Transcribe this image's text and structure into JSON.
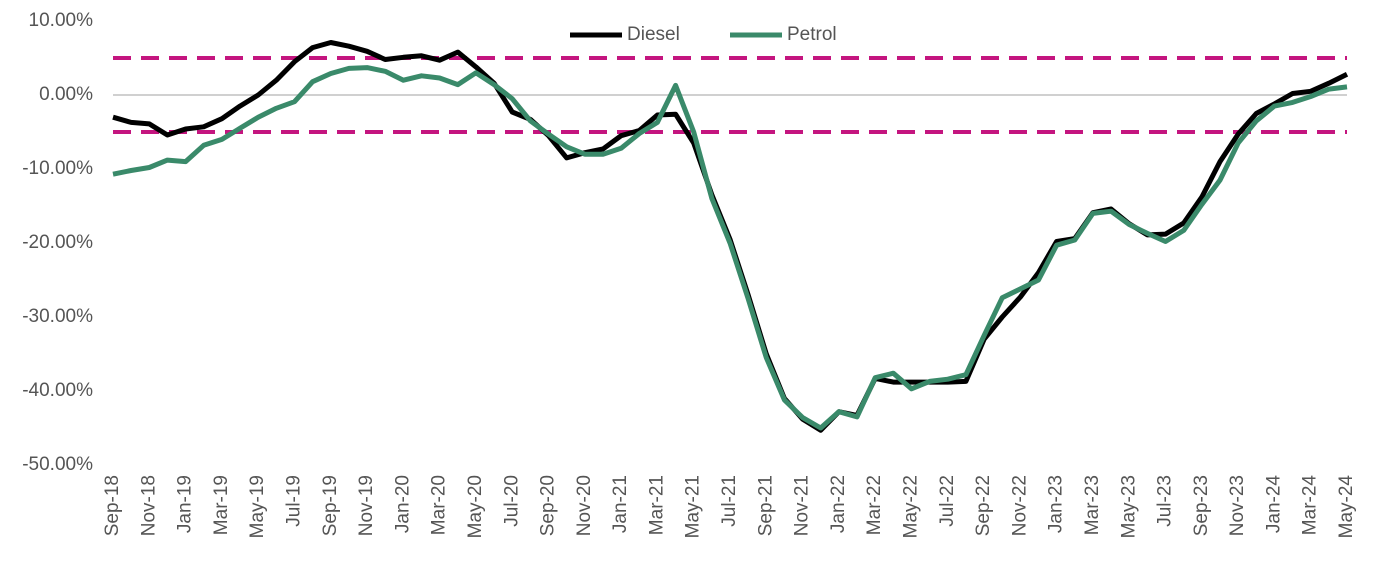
{
  "chart_data": {
    "type": "line",
    "categories": [
      "Sep-18",
      null,
      "Nov-18",
      null,
      "Jan-19",
      null,
      "Mar-19",
      null,
      "May-19",
      null,
      "Jul-19",
      null,
      "Sep-19",
      null,
      "Nov-19",
      null,
      "Jan-20",
      null,
      "Mar-20",
      null,
      "May-20",
      null,
      "Jul-20",
      null,
      "Sep-20",
      null,
      "Nov-20",
      null,
      "Jan-21",
      null,
      "Mar-21",
      null,
      "May-21",
      null,
      "Jul-21",
      null,
      "Sep-21",
      null,
      "Nov-21",
      null,
      "Jan-22",
      null,
      "Mar-22",
      null,
      "May-22",
      null,
      "Jul-22",
      null,
      "Sep-22",
      null,
      "Nov-22",
      null,
      "Jan-23",
      null,
      "Mar-23",
      null,
      "May-23",
      null,
      "Jul-23",
      null,
      "Sep-23",
      null,
      "Nov-23",
      null,
      "Jan-24",
      null,
      "Mar-24",
      null,
      "May-24"
    ],
    "series": [
      {
        "name": "Diesel",
        "color": "#000000",
        "values": [
          -3.0,
          -3.7,
          -3.9,
          -5.4,
          -4.6,
          -4.3,
          -3.2,
          -1.5,
          0,
          2,
          4.5,
          6.4,
          7.1,
          6.6,
          5.9,
          4.8,
          5.1,
          5.3,
          4.7,
          5.8,
          3.8,
          1.6,
          -2.3,
          -3.3,
          -5.5,
          -8.5,
          -7.8,
          -7.3,
          -5.5,
          -4.8,
          -2.7,
          -2.6,
          -6.5,
          -13.5,
          -19.5,
          -27,
          -35,
          -41,
          -43.8,
          -45.3,
          -42.8,
          -43.3,
          -38.3,
          -38.8,
          -38.8,
          -38.8,
          -38.8,
          -38.7,
          -33,
          -30,
          -27.3,
          -24,
          -19.8,
          -19.4,
          -15.9,
          -15.4,
          -17.4,
          -18.9,
          -18.8,
          -17.3,
          -13.8,
          -9,
          -5.3,
          -2.5,
          -1.2,
          0.2,
          0.5,
          1.6,
          2.8
        ]
      },
      {
        "name": "Petrol",
        "color": "#3a8a6a",
        "values": [
          -10.7,
          -10.2,
          -9.8,
          -8.8,
          -9.0,
          -6.8,
          -6.0,
          -4.5,
          -3.0,
          -1.8,
          -0.9,
          1.8,
          2.9,
          3.6,
          3.7,
          3.2,
          2.0,
          2.6,
          2.3,
          1.4,
          3.0,
          1.4,
          -0.5,
          -3.5,
          -5.3,
          -7.0,
          -8.0,
          -8.0,
          -7.2,
          -5.2,
          -3.7,
          1.3,
          -5.0,
          -14,
          -20,
          -27.5,
          -35.5,
          -41.2,
          -43.6,
          -45.0,
          -42.8,
          -43.5,
          -38.2,
          -37.6,
          -39.7,
          -38.7,
          -38.4,
          -37.8,
          -32.5,
          -27.4,
          -26.2,
          -25,
          -20.3,
          -19.6,
          -16.0,
          -15.7,
          -17.5,
          -18.7,
          -19.8,
          -18.3,
          -14.8,
          -11.5,
          -6.5,
          -3.5,
          -1.5,
          -1.0,
          -0.2,
          0.8,
          1.1
        ]
      }
    ],
    "ylim": [
      -50,
      10
    ],
    "yticks": [
      {
        "value": 10,
        "label": "10.00%"
      },
      {
        "value": 0,
        "label": "0.00%"
      },
      {
        "value": -10,
        "label": "-10.00%"
      },
      {
        "value": -20,
        "label": "-20.00%"
      },
      {
        "value": -30,
        "label": "-30.00%"
      },
      {
        "value": -40,
        "label": "-40.00%"
      },
      {
        "value": -50,
        "label": "-50.00%"
      }
    ],
    "zero_line": true,
    "reference_lines": {
      "values": [
        5,
        -5
      ],
      "color": "#c4157f",
      "dashed": true
    },
    "legend": "top"
  }
}
